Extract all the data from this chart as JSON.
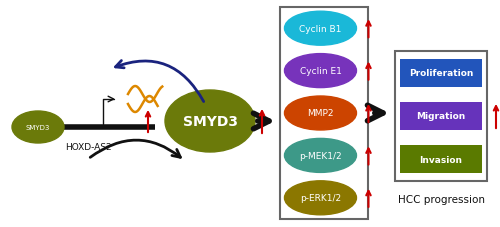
{
  "bg_color": "#ffffff",
  "smyd3_small_color": "#6b7a0a",
  "smyd3_large_color": "#6b7a0a",
  "cyclin_b1_color": "#1ab8d8",
  "cyclin_e1_color": "#7733bb",
  "mmp2_color": "#cc4400",
  "pmek_color": "#3d9988",
  "perk_color": "#8b7700",
  "prolif_color": "#2255bb",
  "migr_color": "#6633bb",
  "inv_color": "#5a7a00",
  "arrow_red": "#cc0000",
  "arrow_blue_dark": "#1a237e",
  "rna_color": "#dd8800",
  "labels": {
    "smyd3": "SMYD3",
    "hoxd": "HOXD-AS2",
    "cyclin_b1": "Cyclin B1",
    "cyclin_e1": "Cyclin E1",
    "mmp2": "MMP2",
    "pmek": "p-MEK1/2",
    "perk": "p-ERK1/2",
    "prolif": "Proliferation",
    "migr": "Migration",
    "inv": "Invasion",
    "hcc": "HCC progression"
  },
  "fig_w": 5.0,
  "fig_h": 2.28,
  "dpi": 100,
  "xlim": [
    0,
    500
  ],
  "ylim": [
    0,
    228
  ]
}
